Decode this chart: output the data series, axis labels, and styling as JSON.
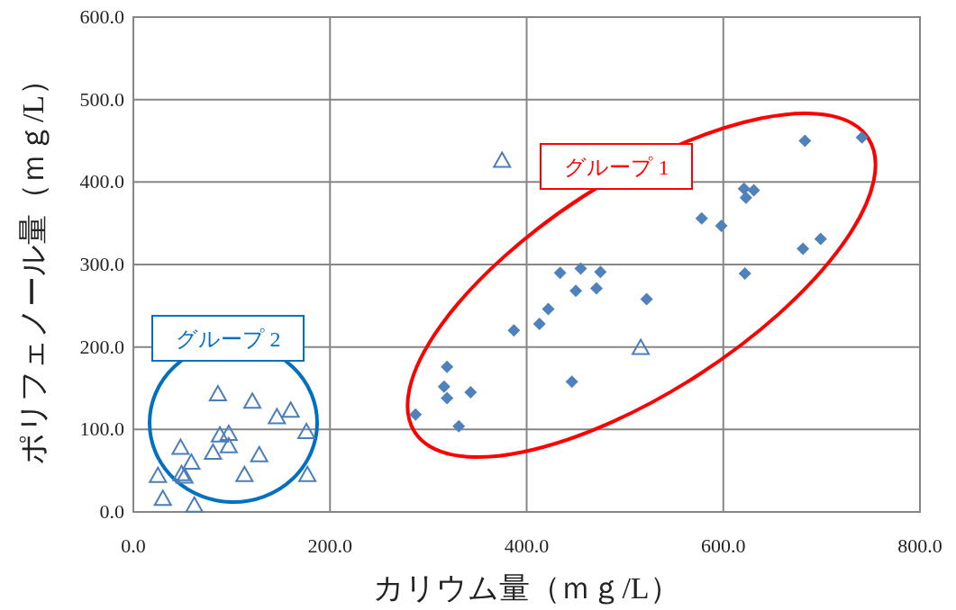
{
  "chart_data": {
    "type": "scatter",
    "xlabel": "カリウム量（ｍｇ/L）",
    "ylabel": "ポリフェノール量（ｍｇ/L）",
    "xlim": [
      0,
      800
    ],
    "ylim": [
      0,
      600
    ],
    "xticks": [
      {
        "value": 0,
        "label": "0.0"
      },
      {
        "value": 200,
        "label": "200.0"
      },
      {
        "value": 400,
        "label": "400.0"
      },
      {
        "value": 600,
        "label": "600.0"
      },
      {
        "value": 800,
        "label": "800.0"
      }
    ],
    "yticks": [
      {
        "value": 0,
        "label": "0.0"
      },
      {
        "value": 100,
        "label": "100.0"
      },
      {
        "value": 200,
        "label": "200.0"
      },
      {
        "value": 300,
        "label": "300.0"
      },
      {
        "value": 400,
        "label": "400.0"
      },
      {
        "value": 500,
        "label": "500.0"
      },
      {
        "value": 600,
        "label": "600.0"
      }
    ],
    "grid": true,
    "annotations": [
      "グループ 1",
      "グループ 2"
    ],
    "series": [
      {
        "marker": "diamond",
        "color": "#4f81bd",
        "x": [
          287,
          319,
          316,
          319,
          331,
          343,
          387,
          413,
          422,
          434,
          455,
          475,
          450,
          471,
          446,
          522,
          578,
          598,
          622,
          621,
          623,
          631,
          681,
          699,
          683,
          741
        ],
        "values": [
          118,
          176,
          152,
          138,
          104,
          145,
          220,
          228,
          246,
          290,
          295,
          291,
          268,
          271,
          158,
          258,
          356,
          347,
          289,
          392,
          381,
          390,
          319,
          331,
          450,
          454
        ]
      },
      {
        "marker": "triangle",
        "color": "#4a7ebb",
        "x": [
          375,
          516,
          86,
          121,
          146,
          160,
          176,
          88,
          97,
          97,
          81,
          48,
          59,
          49,
          52,
          25,
          128,
          113,
          177,
          30,
          62
        ],
        "values": [
          426,
          199,
          143,
          134,
          115,
          123,
          97,
          93,
          95,
          80,
          72,
          78,
          60,
          46,
          43,
          44,
          69,
          45,
          45,
          16,
          8
        ]
      }
    ]
  }
}
